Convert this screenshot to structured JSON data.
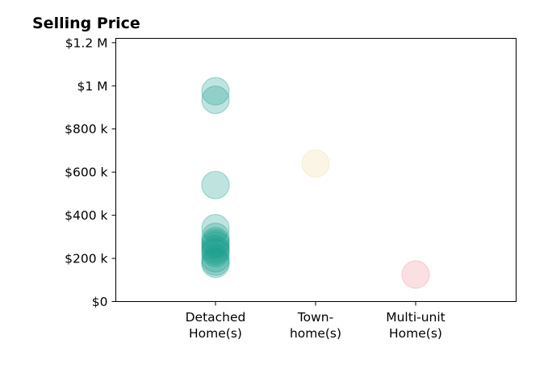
{
  "chart_data": {
    "type": "scatter",
    "title": "Selling Price",
    "xlabel": "",
    "ylabel": "",
    "categories": [
      "Detached\nHome(s)",
      "Town-\nhome(s)",
      "Multi-unit\nHome(s)"
    ],
    "ylim": [
      0,
      1220000
    ],
    "y_ticks": [
      0,
      200000,
      400000,
      600000,
      800000,
      1000000,
      1200000
    ],
    "y_tick_labels": [
      "$0",
      "$200 k",
      "$400 k",
      "$600 k",
      "$800 k",
      "$1 M",
      "$1.2 M"
    ],
    "grid": false,
    "legend": "none",
    "series": [
      {
        "category": "Detached\nHome(s)",
        "color": "#1a9e8c",
        "values": [
          975000,
          935000,
          540000,
          340000,
          300000,
          280000,
          270000,
          260000,
          245000,
          235000,
          225000,
          200000,
          185000,
          175000
        ]
      },
      {
        "category": "Town-\nhome(s)",
        "color": "#f2dca0",
        "values": [
          640000
        ]
      },
      {
        "category": "Multi-unit\nHome(s)",
        "color": "#ef8f9b",
        "values": [
          125000
        ]
      }
    ]
  }
}
